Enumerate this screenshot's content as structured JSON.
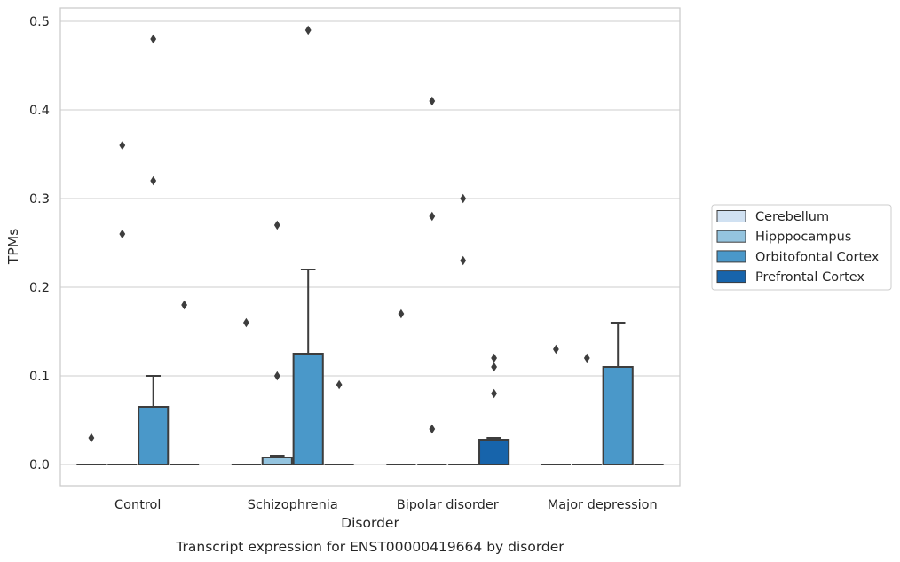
{
  "chart_data": {
    "type": "box",
    "title": "",
    "caption": "Transcript expression for ENST00000419664 by disorder",
    "xlabel": "Disorder",
    "ylabel": "TPMs",
    "ylim": [
      -0.024,
      0.516
    ],
    "yticks": [
      0.0,
      0.1,
      0.2,
      0.3,
      0.4,
      0.5
    ],
    "ytick_labels": [
      "0.0",
      "0.1",
      "0.2",
      "0.3",
      "0.4",
      "0.5"
    ],
    "grid": true,
    "legend_position": "center-right",
    "categories": [
      "Control",
      "Schizophrenia",
      "Bipolar disorder",
      "Major depression"
    ],
    "series": [
      {
        "name": "Cerebellum",
        "color": "#d0e1f2",
        "boxes": [
          {
            "min": 0,
            "q1": 0,
            "median": 0,
            "q3": 0,
            "max": 0,
            "outliers": [
              0.03
            ]
          },
          {
            "min": 0,
            "q1": 0,
            "median": 0,
            "q3": 0,
            "max": 0,
            "outliers": [
              0.16
            ]
          },
          {
            "min": 0,
            "q1": 0,
            "median": 0,
            "q3": 0,
            "max": 0,
            "outliers": [
              0.17
            ]
          },
          {
            "min": 0,
            "q1": 0,
            "median": 0,
            "q3": 0,
            "max": 0,
            "outliers": [
              0.13
            ]
          }
        ]
      },
      {
        "name": "Hipppocampus",
        "color": "#94c4df",
        "boxes": [
          {
            "min": 0,
            "q1": 0,
            "median": 0,
            "q3": 0,
            "max": 0,
            "outliers": [
              0.36,
              0.26
            ]
          },
          {
            "min": 0,
            "q1": 0,
            "median": 0,
            "q3": 0.008,
            "max": 0.01,
            "outliers": [
              0.27,
              0.1
            ]
          },
          {
            "min": 0,
            "q1": 0,
            "median": 0,
            "q3": 0,
            "max": 0,
            "outliers": [
              0.41,
              0.28,
              0.04
            ]
          },
          {
            "min": 0,
            "q1": 0,
            "median": 0,
            "q3": 0,
            "max": 0,
            "outliers": [
              0.12
            ]
          }
        ]
      },
      {
        "name": "Orbitofontal Cortex",
        "color": "#4a98c9",
        "boxes": [
          {
            "min": 0,
            "q1": 0,
            "median": 0,
            "q3": 0.065,
            "max": 0.1,
            "outliers": [
              0.48,
              0.32
            ]
          },
          {
            "min": 0,
            "q1": 0,
            "median": 0,
            "q3": 0.125,
            "max": 0.22,
            "outliers": [
              0.49
            ]
          },
          {
            "min": 0,
            "q1": 0,
            "median": 0,
            "q3": 0,
            "max": 0,
            "outliers": [
              0.3,
              0.23
            ]
          },
          {
            "min": 0,
            "q1": 0,
            "median": 0,
            "q3": 0.11,
            "max": 0.16,
            "outliers": []
          }
        ]
      },
      {
        "name": "Prefrontal Cortex",
        "color": "#1764ab",
        "boxes": [
          {
            "min": 0,
            "q1": 0,
            "median": 0,
            "q3": 0,
            "max": 0,
            "outliers": [
              0.18
            ]
          },
          {
            "min": 0,
            "q1": 0,
            "median": 0,
            "q3": 0,
            "max": 0,
            "outliers": [
              0.09
            ]
          },
          {
            "min": 0,
            "q1": 0,
            "median": 0,
            "q3": 0.028,
            "max": 0.03,
            "outliers": [
              0.12,
              0.11,
              0.08
            ]
          },
          {
            "min": 0,
            "q1": 0,
            "median": 0,
            "q3": 0,
            "max": 0,
            "outliers": []
          }
        ]
      }
    ]
  }
}
